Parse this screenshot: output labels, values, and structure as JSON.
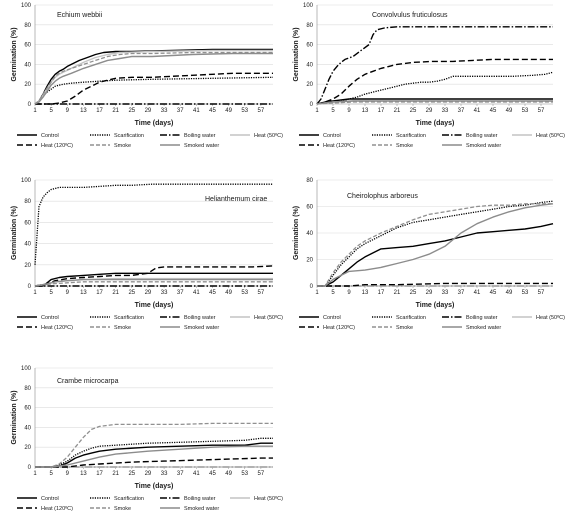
{
  "chart_data": [
    {
      "type": "line",
      "title": "Echium webbii",
      "xlabel": "Time (days)",
      "ylabel": "Germination (%)",
      "xlim": [
        1,
        60
      ],
      "ylim": [
        0,
        100
      ],
      "x_ticks": [
        1,
        5,
        9,
        13,
        17,
        21,
        25,
        29,
        33,
        37,
        41,
        45,
        49,
        53,
        57
      ],
      "y_ticks": [
        0,
        20,
        40,
        60,
        80,
        100
      ],
      "legend_position": "bottom",
      "series": [
        {
          "name": "Control",
          "x": [
            1,
            2,
            3,
            4,
            5,
            6,
            7,
            8,
            9,
            10,
            12,
            14,
            16,
            18,
            21,
            25,
            35,
            45,
            60
          ],
          "y": [
            0,
            3,
            10,
            18,
            25,
            30,
            33,
            35,
            38,
            40,
            44,
            47,
            50,
            52,
            53,
            53,
            54,
            55,
            55
          ]
        },
        {
          "name": "Scarification",
          "x": [
            1,
            2,
            3,
            4,
            5,
            6,
            7,
            8,
            10,
            13,
            17,
            21,
            30,
            45,
            60
          ],
          "y": [
            0,
            3,
            8,
            12,
            15,
            18,
            19,
            20,
            21,
            22,
            23,
            24,
            25,
            26,
            27
          ]
        },
        {
          "name": "Boiling water",
          "x": [
            1,
            60
          ],
          "y": [
            0,
            0
          ]
        },
        {
          "name": "Heat (50ºC)",
          "x": [
            1,
            2,
            3,
            4,
            5,
            6,
            7,
            8,
            10,
            13,
            16,
            19,
            22,
            30,
            45,
            60
          ],
          "y": [
            0,
            3,
            9,
            16,
            22,
            27,
            30,
            32,
            36,
            42,
            47,
            50,
            52,
            53,
            54,
            54
          ]
        },
        {
          "name": "Heat (120ºC)",
          "x": [
            1,
            4,
            5,
            7,
            9,
            11,
            13,
            15,
            17,
            19,
            21,
            25,
            30,
            35,
            40,
            45,
            50,
            60
          ],
          "y": [
            0,
            0,
            0,
            1,
            3,
            8,
            14,
            18,
            22,
            24,
            26,
            27,
            27,
            28,
            29,
            30,
            31,
            31
          ]
        },
        {
          "name": "Smoke",
          "x": [
            1,
            2,
            3,
            4,
            5,
            6,
            7,
            8,
            10,
            13,
            16,
            19,
            22,
            25,
            30,
            40,
            50,
            60
          ],
          "y": [
            0,
            3,
            10,
            16,
            22,
            28,
            31,
            33,
            36,
            40,
            44,
            48,
            50,
            51,
            51,
            52,
            52,
            52
          ]
        },
        {
          "name": "Smoked water",
          "x": [
            1,
            2,
            3,
            4,
            5,
            6,
            7,
            8,
            10,
            13,
            16,
            19,
            22,
            25,
            30,
            35,
            40,
            50,
            60
          ],
          "y": [
            0,
            2,
            7,
            13,
            19,
            23,
            26,
            28,
            31,
            36,
            40,
            44,
            46,
            48,
            48,
            49,
            50,
            51,
            51
          ]
        }
      ]
    },
    {
      "type": "line",
      "title": "Convolvulus fruticulosus",
      "xlabel": "Time (days)",
      "ylabel": "Germination (%)",
      "xlim": [
        1,
        60
      ],
      "ylim": [
        0,
        100
      ],
      "x_ticks": [
        1,
        5,
        9,
        13,
        17,
        21,
        25,
        29,
        33,
        37,
        41,
        45,
        49,
        53,
        57
      ],
      "y_ticks": [
        0,
        20,
        40,
        60,
        80,
        100
      ],
      "legend_position": "bottom",
      "series": [
        {
          "name": "Control",
          "x": [
            1,
            3,
            5,
            7,
            9,
            60
          ],
          "y": [
            0,
            2,
            3,
            4,
            5,
            5
          ]
        },
        {
          "name": "Scarification",
          "x": [
            1,
            3,
            5,
            7,
            9,
            11,
            13,
            15,
            17,
            19,
            21,
            23,
            25,
            27,
            29,
            31,
            33,
            35,
            40,
            45,
            50,
            55,
            58,
            60
          ],
          "y": [
            0,
            1,
            2,
            3,
            5,
            7,
            10,
            12,
            14,
            16,
            18,
            20,
            21,
            22,
            22,
            23,
            25,
            28,
            28,
            28,
            28,
            29,
            30,
            32
          ]
        },
        {
          "name": "Boiling water",
          "x": [
            1,
            2,
            3,
            4,
            5,
            6,
            7,
            8,
            10,
            12,
            14,
            15,
            16,
            18,
            21,
            60
          ],
          "y": [
            0,
            5,
            15,
            25,
            33,
            38,
            42,
            45,
            48,
            54,
            60,
            70,
            75,
            77,
            78,
            78
          ]
        },
        {
          "name": "Heat (50ºC)",
          "x": [
            1,
            5,
            10,
            60
          ],
          "y": [
            0,
            2,
            3,
            3
          ]
        },
        {
          "name": "Heat (120ºC)",
          "x": [
            1,
            3,
            5,
            7,
            9,
            11,
            13,
            15,
            17,
            19,
            21,
            25,
            30,
            35,
            40,
            45,
            60
          ],
          "y": [
            0,
            2,
            5,
            10,
            18,
            25,
            30,
            33,
            36,
            38,
            40,
            42,
            43,
            43,
            44,
            45,
            45
          ]
        },
        {
          "name": "Smoke",
          "x": [
            1,
            5,
            10,
            60
          ],
          "y": [
            0,
            1,
            2,
            2
          ]
        },
        {
          "name": "Smoked water",
          "x": [
            1,
            5,
            10,
            60
          ],
          "y": [
            0,
            2,
            3,
            3
          ]
        }
      ]
    },
    {
      "type": "line",
      "title": "Helianthemum cirae",
      "xlabel": "Time (days)",
      "ylabel": "Germination (%)",
      "xlim": [
        1,
        60
      ],
      "ylim": [
        0,
        100
      ],
      "x_ticks": [
        1,
        5,
        9,
        13,
        17,
        21,
        25,
        29,
        33,
        37,
        41,
        45,
        49,
        53,
        57
      ],
      "y_ticks": [
        0,
        20,
        40,
        60,
        80,
        100
      ],
      "legend_position": "bottom",
      "series": [
        {
          "name": "Control",
          "x": [
            1,
            3,
            4,
            5,
            7,
            9,
            13,
            17,
            21,
            25,
            33,
            45,
            60
          ],
          "y": [
            0,
            0,
            3,
            6,
            8,
            9,
            10,
            11,
            12,
            12,
            12,
            12,
            12
          ]
        },
        {
          "name": "Scarification",
          "x": [
            1,
            2,
            3,
            4,
            5,
            6,
            7,
            9,
            13,
            17,
            21,
            25,
            30,
            40,
            60
          ],
          "y": [
            20,
            75,
            84,
            88,
            91,
            92,
            93,
            93,
            93,
            94,
            95,
            95,
            96,
            96,
            96
          ]
        },
        {
          "name": "Boiling water",
          "x": [
            1,
            60
          ],
          "y": [
            0,
            0
          ]
        },
        {
          "name": "Heat (50ºC)",
          "x": [
            1,
            4,
            6,
            9,
            13,
            21,
            29,
            60
          ],
          "y": [
            0,
            2,
            4,
            5,
            6,
            7,
            7,
            7
          ]
        },
        {
          "name": "Heat (120ºC)",
          "x": [
            1,
            4,
            6,
            9,
            13,
            17,
            21,
            25,
            29,
            31,
            33,
            41,
            49,
            55,
            60
          ],
          "y": [
            0,
            2,
            5,
            7,
            8,
            9,
            10,
            10,
            12,
            17,
            18,
            18,
            18,
            18,
            19
          ]
        },
        {
          "name": "Smoke",
          "x": [
            1,
            5,
            9,
            13,
            21,
            60
          ],
          "y": [
            0,
            2,
            3,
            4,
            4,
            4
          ]
        },
        {
          "name": "Smoked water",
          "x": [
            1,
            4,
            6,
            9,
            13,
            21,
            60
          ],
          "y": [
            0,
            2,
            4,
            5,
            6,
            6,
            6
          ]
        }
      ]
    },
    {
      "type": "line",
      "title": "Cheirolophus arboreus",
      "xlabel": "Time (days)",
      "ylabel": "Germination (%)",
      "xlim": [
        1,
        60
      ],
      "ylim": [
        0,
        80
      ],
      "x_ticks": [
        1,
        5,
        9,
        13,
        17,
        21,
        25,
        29,
        33,
        37,
        41,
        45,
        49,
        53,
        57
      ],
      "y_ticks": [
        0,
        20,
        40,
        60,
        80
      ],
      "legend_position": "bottom",
      "series": [
        {
          "name": "Control",
          "x": [
            1,
            3,
            5,
            7,
            9,
            11,
            13,
            15,
            17,
            21,
            25,
            29,
            33,
            37,
            41,
            45,
            49,
            53,
            57,
            60
          ],
          "y": [
            0,
            0,
            3,
            8,
            13,
            18,
            22,
            25,
            28,
            29,
            30,
            32,
            34,
            37,
            40,
            41,
            42,
            43,
            45,
            47
          ]
        },
        {
          "name": "Scarification",
          "x": [
            1,
            3,
            5,
            7,
            9,
            11,
            13,
            17,
            21,
            25,
            29,
            33,
            37,
            41,
            45,
            49,
            53,
            57,
            60
          ],
          "y": [
            0,
            0,
            8,
            16,
            22,
            28,
            32,
            38,
            44,
            48,
            50,
            52,
            54,
            56,
            58,
            60,
            61,
            63,
            64
          ]
        },
        {
          "name": "Boiling water",
          "x": [
            1,
            60
          ],
          "y": [
            0,
            0
          ]
        },
        {
          "name": "Heat (50ºC)",
          "x": [
            1,
            60
          ],
          "y": [
            0,
            0
          ]
        },
        {
          "name": "Heat (120ºC)",
          "x": [
            1,
            5,
            9,
            13,
            21,
            33,
            45,
            60
          ],
          "y": [
            0,
            0,
            0,
            1,
            1,
            2,
            2,
            2
          ]
        },
        {
          "name": "Smoke",
          "x": [
            1,
            3,
            5,
            7,
            9,
            11,
            13,
            15,
            17,
            21,
            25,
            29,
            33,
            37,
            41,
            45,
            49,
            53,
            57,
            60
          ],
          "y": [
            0,
            0,
            10,
            18,
            24,
            30,
            34,
            37,
            40,
            45,
            50,
            54,
            56,
            58,
            60,
            61,
            61,
            62,
            62,
            62
          ]
        },
        {
          "name": "Smoked water",
          "x": [
            1,
            3,
            5,
            7,
            9,
            13,
            17,
            21,
            25,
            29,
            33,
            37,
            41,
            45,
            49,
            53,
            57,
            60
          ],
          "y": [
            0,
            0,
            5,
            8,
            11,
            12,
            14,
            17,
            20,
            24,
            30,
            40,
            47,
            52,
            56,
            59,
            61,
            62
          ]
        }
      ]
    },
    {
      "type": "line",
      "title": "Crambe microcarpa",
      "xlabel": "Time (days)",
      "ylabel": "Germination (%)",
      "xlim": [
        1,
        60
      ],
      "ylim": [
        0,
        100
      ],
      "x_ticks": [
        1,
        5,
        9,
        13,
        17,
        21,
        25,
        29,
        33,
        37,
        41,
        45,
        49,
        53,
        57
      ],
      "y_ticks": [
        0,
        20,
        40,
        60,
        80,
        100
      ],
      "legend_position": "bottom",
      "series": [
        {
          "name": "Control",
          "x": [
            1,
            5,
            7,
            9,
            11,
            13,
            15,
            17,
            21,
            29,
            37,
            45,
            53,
            57,
            60
          ],
          "y": [
            0,
            0,
            1,
            4,
            9,
            12,
            14,
            16,
            18,
            20,
            21,
            22,
            22,
            24,
            24
          ]
        },
        {
          "name": "Scarification",
          "x": [
            1,
            5,
            7,
            9,
            11,
            13,
            15,
            17,
            21,
            25,
            29,
            37,
            45,
            53,
            57,
            60
          ],
          "y": [
            0,
            0,
            2,
            6,
            12,
            16,
            19,
            21,
            22,
            23,
            24,
            25,
            26,
            27,
            29,
            29
          ]
        },
        {
          "name": "Boiling water",
          "x": [
            1,
            60
          ],
          "y": [
            0,
            0
          ]
        },
        {
          "name": "Heat (50ºC)",
          "x": [
            1,
            60
          ],
          "y": [
            0,
            0
          ]
        },
        {
          "name": "Heat (120ºC)",
          "x": [
            1,
            9,
            13,
            17,
            25,
            33,
            41,
            49,
            57,
            60
          ],
          "y": [
            0,
            0,
            2,
            3,
            5,
            6,
            7,
            8,
            9,
            9
          ]
        },
        {
          "name": "Smoke",
          "x": [
            1,
            5,
            7,
            9,
            11,
            13,
            15,
            17,
            19,
            21,
            29,
            37,
            45,
            53,
            60
          ],
          "y": [
            0,
            0,
            3,
            10,
            20,
            30,
            38,
            41,
            42,
            43,
            43,
            43,
            44,
            44,
            44
          ]
        },
        {
          "name": "Smoked water",
          "x": [
            1,
            5,
            9,
            13,
            17,
            21,
            29,
            37,
            45,
            53,
            57,
            60
          ],
          "y": [
            0,
            0,
            2,
            6,
            10,
            13,
            16,
            18,
            20,
            21,
            21,
            21
          ]
        }
      ]
    }
  ]
}
